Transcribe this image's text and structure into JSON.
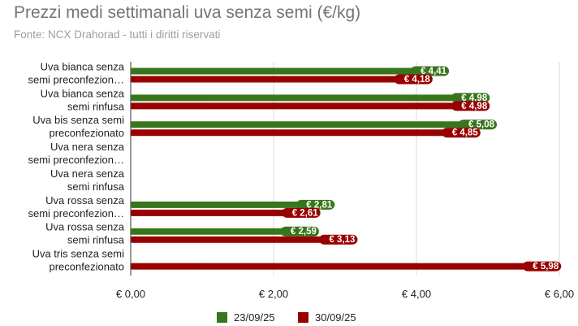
{
  "title": "Prezzi medi settimanali uva senza semi (€/kg)",
  "subtitle": "Fonte: NCX Drahorad - tutti i diritti riservati",
  "colors": {
    "series1": "#38761d",
    "series2": "#990000",
    "grid": "#d9d9d9",
    "axis": "#333333"
  },
  "chart_data": {
    "type": "bar",
    "orientation": "horizontal",
    "title": "Prezzi medi settimanali uva senza semi (€/kg)",
    "subtitle": "Fonte: NCX Drahorad - tutti i diritti riservati",
    "categories": [
      [
        "Uva bianca senza",
        "semi preconfezion…"
      ],
      [
        "Uva bianca senza",
        "semi rinfusa"
      ],
      [
        "Uva bis senza semi",
        "preconfezionato"
      ],
      [
        "Uva nera senza",
        "semi preconfezion…"
      ],
      [
        "Uva nera senza",
        "semi rinfusa"
      ],
      [
        "Uva rossa senza",
        "semi preconfezion…"
      ],
      [
        "Uva rossa senza",
        "semi rinfusa"
      ],
      [
        "Uva tris senza semi",
        "preconfezionato"
      ]
    ],
    "series": [
      {
        "name": "23/09/25",
        "values": [
          4.41,
          4.98,
          5.08,
          null,
          null,
          2.81,
          2.59,
          null
        ],
        "labels": [
          "€ 4,41",
          "€ 4,98",
          "€ 5,08",
          "",
          "",
          "€ 2,81",
          "€ 2,59",
          ""
        ]
      },
      {
        "name": "30/09/25",
        "values": [
          4.18,
          4.98,
          4.85,
          null,
          null,
          2.61,
          3.13,
          5.98
        ],
        "labels": [
          "€ 4,18",
          "€ 4,98",
          "€ 4,85",
          "",
          "",
          "€ 2,61",
          "€ 3,13",
          "€ 5,98"
        ]
      }
    ],
    "xlim": [
      0,
      6
    ],
    "xticks": [
      0,
      2,
      4,
      6
    ],
    "xtick_labels": [
      "€ 0,00",
      "€ 2,00",
      "€ 4,00",
      "€ 6,00"
    ],
    "grid": true,
    "legend_position": "bottom-center"
  }
}
